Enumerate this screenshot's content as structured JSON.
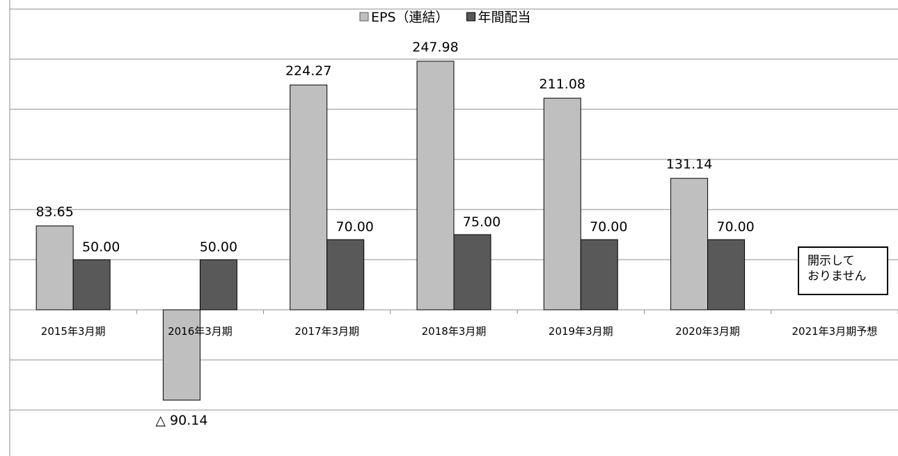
{
  "chart_data": {
    "type": "bar",
    "title": "",
    "xlabel": "",
    "ylabel": "",
    "ylim": [
      -140,
      310
    ],
    "grid": true,
    "legend_position": "top-center",
    "categories": [
      "2015年3月期",
      "2016年3月期",
      "2017年3月期",
      "2018年3月期",
      "2019年3月期",
      "2020年3月期",
      "2021年3月期予想"
    ],
    "series": [
      {
        "name": "EPS（連結）",
        "color": "#bfbfbf",
        "values": [
          83.65,
          -90.14,
          224.27,
          247.98,
          211.08,
          131.14,
          null
        ],
        "labels": [
          "83.65",
          "△ 90.14",
          "224.27",
          "247.98",
          "211.08",
          "131.14",
          ""
        ]
      },
      {
        "name": "年間配当",
        "color": "#595959",
        "values": [
          50.0,
          50.0,
          70.0,
          75.0,
          70.0,
          70.0,
          null
        ],
        "labels": [
          "50.00",
          "50.00",
          "70.00",
          "75.00",
          "70.00",
          "70.00",
          ""
        ]
      }
    ],
    "annotation": {
      "category": "2021年3月期予想",
      "lines": [
        "開示して",
        "おりません"
      ]
    }
  }
}
